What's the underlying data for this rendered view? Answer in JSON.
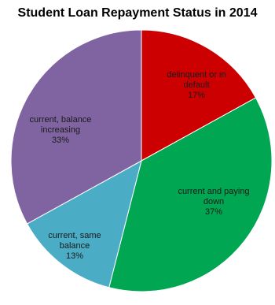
{
  "chart_data": {
    "type": "pie",
    "title": "Student Loan Repayment Status in 2014",
    "slices": [
      {
        "label": "delinquent or in default",
        "value": 17,
        "display": "17%",
        "color": "#cc0000",
        "label_lines": [
          "delinquent or in",
          "default",
          "17%"
        ]
      },
      {
        "label": "current and paying down",
        "value": 37,
        "display": "37%",
        "color": "#00a651",
        "label_lines": [
          "current and paying",
          "down",
          "37%"
        ]
      },
      {
        "label": "current, same balance",
        "value": 13,
        "display": "13%",
        "color": "#4bacc6",
        "label_lines": [
          "current, same",
          "balance",
          "13%"
        ]
      },
      {
        "label": "current, balance increasing",
        "value": 33,
        "display": "33%",
        "color": "#8064a2",
        "label_lines": [
          "current, balance",
          "increasing",
          "33%"
        ]
      }
    ]
  }
}
